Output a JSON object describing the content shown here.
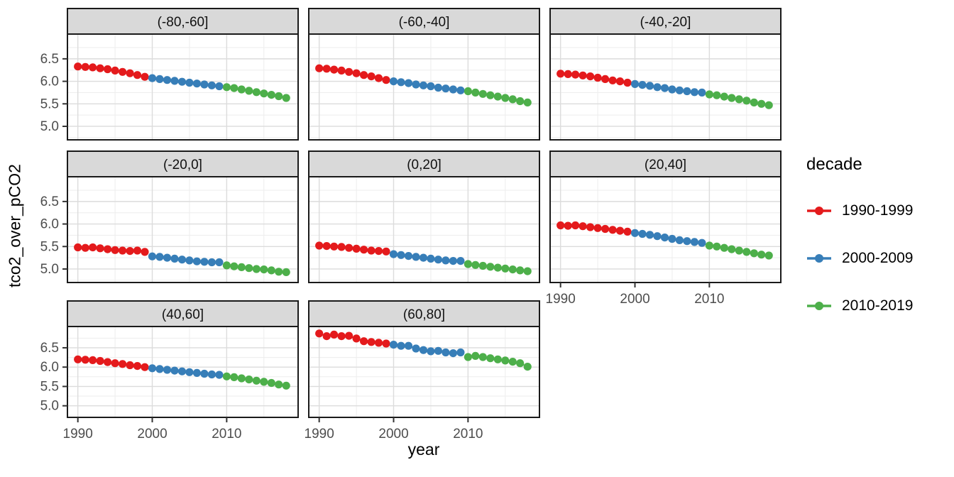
{
  "figure": {
    "legend": {
      "title": "decade",
      "entries": [
        {
          "label": "1990-1999",
          "color": "#E41A1C"
        },
        {
          "label": "2000-2009",
          "color": "#377EB8"
        },
        {
          "label": "2010-2019",
          "color": "#4DAF4A"
        }
      ]
    }
  },
  "chart_data": {
    "type": "scatter",
    "title": "",
    "xlabel": "year",
    "ylabel": "tco2_over_pCO2",
    "xlim": [
      1988.6,
      2019.6
    ],
    "ylim": [
      4.7,
      7.05
    ],
    "x_ticks": [
      1990,
      2000,
      2010
    ],
    "x_minor_ticks": [
      1995,
      2005,
      2015
    ],
    "y_ticks": [
      "5.0",
      "5.5",
      "6.0",
      "6.5"
    ],
    "y_minor_ticks": [
      4.75,
      5.25,
      5.75,
      6.25,
      6.75
    ],
    "grid": true,
    "legend_position": "right",
    "panel_background": "#ffffff",
    "strip_fill": "#d9d9d9",
    "strip_border": "#1a1a1a",
    "grid_major_color": "#dcdcdc",
    "grid_minor_color": "#ededed",
    "tick_label_color": "#4d4d4d",
    "series_colors": {
      "1990-1999": "#E41A1C",
      "2000-2009": "#377EB8",
      "2010-2019": "#4DAF4A"
    },
    "series_years": {
      "1990-1999": [
        1990,
        1991,
        1992,
        1993,
        1994,
        1995,
        1996,
        1997,
        1998,
        1999
      ],
      "2000-2009": [
        2000,
        2001,
        2002,
        2003,
        2004,
        2005,
        2006,
        2007,
        2008,
        2009
      ],
      "2010-2019": [
        2010,
        2011,
        2012,
        2013,
        2014,
        2015,
        2016,
        2017,
        2018
      ]
    },
    "facets": [
      {
        "label": "(-80,-60]",
        "values": {
          "1990-1999": [
            6.33,
            6.32,
            6.31,
            6.29,
            6.27,
            6.24,
            6.21,
            6.18,
            6.14,
            6.1
          ],
          "2000-2009": [
            6.07,
            6.05,
            6.03,
            6.01,
            5.99,
            5.97,
            5.95,
            5.93,
            5.91,
            5.89
          ],
          "2010-2019": [
            5.87,
            5.85,
            5.82,
            5.79,
            5.76,
            5.73,
            5.7,
            5.67,
            5.63
          ]
        }
      },
      {
        "label": "(-60,-40]",
        "values": {
          "1990-1999": [
            6.29,
            6.28,
            6.26,
            6.24,
            6.21,
            6.18,
            6.14,
            6.11,
            6.07,
            6.03
          ],
          "2000-2009": [
            6.0,
            5.98,
            5.96,
            5.93,
            5.91,
            5.89,
            5.86,
            5.84,
            5.82,
            5.8
          ],
          "2010-2019": [
            5.78,
            5.75,
            5.72,
            5.69,
            5.66,
            5.63,
            5.6,
            5.56,
            5.53
          ]
        }
      },
      {
        "label": "(-40,-20]",
        "values": {
          "1990-1999": [
            6.17,
            6.16,
            6.15,
            6.13,
            6.11,
            6.08,
            6.05,
            6.02,
            6.0,
            5.97
          ],
          "2000-2009": [
            5.94,
            5.92,
            5.9,
            5.87,
            5.85,
            5.82,
            5.8,
            5.78,
            5.76,
            5.75
          ],
          "2010-2019": [
            5.71,
            5.69,
            5.66,
            5.63,
            5.6,
            5.57,
            5.53,
            5.5,
            5.47
          ]
        }
      },
      {
        "label": "(-20,0]",
        "values": {
          "1990-1999": [
            5.48,
            5.47,
            5.48,
            5.46,
            5.44,
            5.42,
            5.41,
            5.4,
            5.41,
            5.38
          ],
          "2000-2009": [
            5.28,
            5.27,
            5.25,
            5.23,
            5.21,
            5.19,
            5.17,
            5.16,
            5.15,
            5.15
          ],
          "2010-2019": [
            5.08,
            5.06,
            5.04,
            5.02,
            5.0,
            4.99,
            4.97,
            4.94,
            4.93
          ]
        }
      },
      {
        "label": "(0,20]",
        "values": {
          "1990-1999": [
            5.52,
            5.51,
            5.5,
            5.49,
            5.47,
            5.45,
            5.43,
            5.41,
            5.4,
            5.39
          ],
          "2000-2009": [
            5.33,
            5.31,
            5.29,
            5.27,
            5.25,
            5.23,
            5.21,
            5.19,
            5.18,
            5.18
          ],
          "2010-2019": [
            5.11,
            5.09,
            5.07,
            5.05,
            5.03,
            5.01,
            4.99,
            4.97,
            4.95
          ]
        }
      },
      {
        "label": "(20,40]",
        "values": {
          "1990-1999": [
            5.97,
            5.96,
            5.97,
            5.95,
            5.93,
            5.91,
            5.89,
            5.87,
            5.85,
            5.83
          ],
          "2000-2009": [
            5.8,
            5.78,
            5.76,
            5.73,
            5.7,
            5.67,
            5.64,
            5.62,
            5.6,
            5.58
          ],
          "2010-2019": [
            5.52,
            5.5,
            5.47,
            5.44,
            5.41,
            5.38,
            5.35,
            5.32,
            5.3
          ]
        }
      },
      {
        "label": "(40,60]",
        "values": {
          "1990-1999": [
            6.2,
            6.19,
            6.18,
            6.16,
            6.13,
            6.1,
            6.08,
            6.05,
            6.03,
            6.0
          ],
          "2000-2009": [
            5.97,
            5.95,
            5.93,
            5.91,
            5.89,
            5.87,
            5.85,
            5.83,
            5.81,
            5.8
          ],
          "2010-2019": [
            5.76,
            5.74,
            5.71,
            5.68,
            5.65,
            5.62,
            5.59,
            5.55,
            5.52
          ]
        }
      },
      {
        "label": "(60,80]",
        "values": {
          "1990-1999": [
            6.87,
            6.8,
            6.84,
            6.8,
            6.81,
            6.74,
            6.67,
            6.65,
            6.63,
            6.61
          ],
          "2000-2009": [
            6.58,
            6.55,
            6.55,
            6.48,
            6.44,
            6.41,
            6.42,
            6.38,
            6.36,
            6.38
          ],
          "2010-2019": [
            6.26,
            6.29,
            6.26,
            6.23,
            6.2,
            6.17,
            6.14,
            6.1,
            6.01
          ]
        }
      }
    ]
  }
}
